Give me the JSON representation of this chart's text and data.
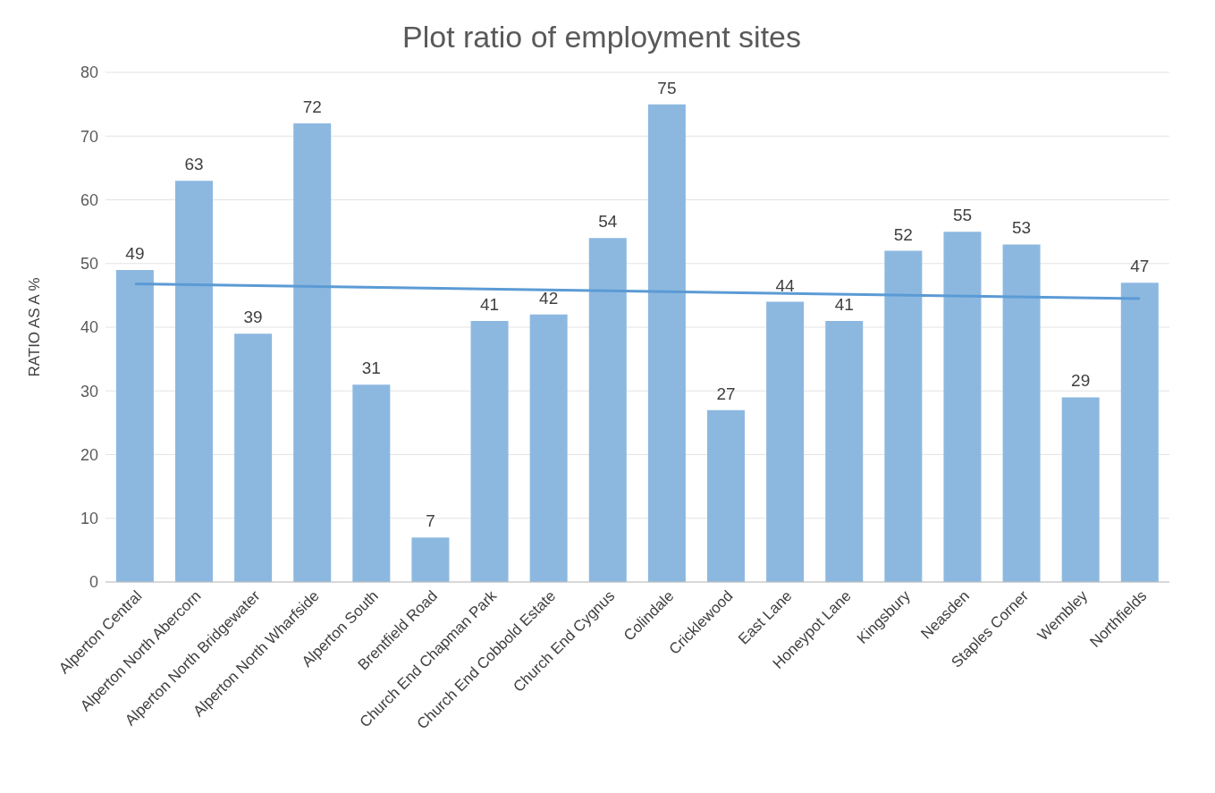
{
  "chart_data": {
    "type": "bar",
    "title": "Plot ratio of employment sites",
    "ylabel": "RATIO AS A %",
    "categories": [
      "Alperton Central",
      "Alperton North Abercorn",
      "Alperton North Bridgewater",
      "Alperton North Wharfside",
      "Alperton South",
      "Brentfield  Road",
      "Church End Chapman Park",
      "Church End Cobbold Estate",
      "Church End Cygnus",
      "Colindale",
      "Cricklewood",
      "East Lane",
      "Honeypot  Lane",
      "Kingsbury",
      "Neasden",
      "Staples Corner",
      "Wembley",
      "Northfields"
    ],
    "series": [
      {
        "color": "#8cb8e0",
        "values": [
          49,
          63,
          39,
          72,
          31,
          7,
          41,
          42,
          54,
          75,
          27,
          44,
          41,
          52,
          55,
          53,
          29,
          47
        ],
        "value_labels": [
          "49",
          "63",
          "39",
          "72",
          "31",
          "7",
          "41",
          "42",
          "54",
          "75",
          "27",
          "44",
          "41",
          "52",
          "55",
          "53",
          "29",
          "47"
        ]
      },
      {
        "type": "line",
        "color": "#5b9bd5",
        "x": [
          "Alperton Central",
          "Northfields"
        ],
        "values": [
          46.8,
          44.5
        ]
      }
    ],
    "ylim": [
      0,
      80
    ],
    "yticks": [
      0,
      10,
      20,
      30,
      40,
      50,
      60,
      70,
      80
    ],
    "grid": "y",
    "legend": false,
    "marker": "none"
  }
}
